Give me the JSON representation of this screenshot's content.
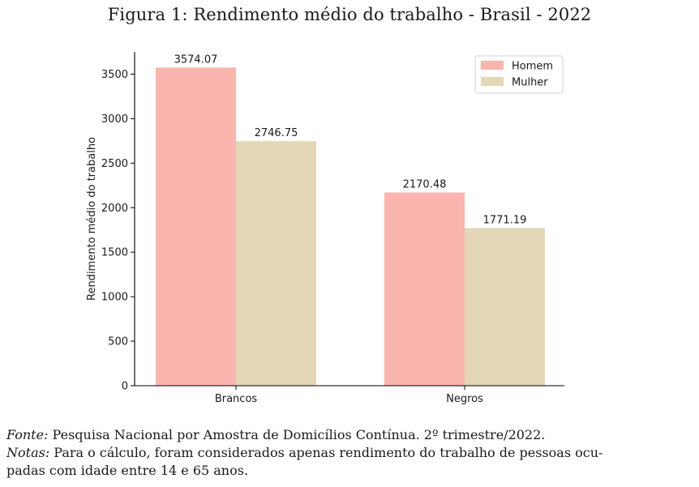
{
  "figure": {
    "title": "Figura 1: Rendimento médio do trabalho - Brasil - 2022"
  },
  "chart_data": {
    "type": "bar",
    "title": "",
    "xlabel": "",
    "ylabel": "Rendimento médio do trabalho",
    "categories": [
      "Brancos",
      "Negros"
    ],
    "series": [
      {
        "name": "Homem",
        "values": [
          3574.07,
          2170.48
        ],
        "color": "#f9b5ae"
      },
      {
        "name": "Mulher",
        "values": [
          2746.75,
          1771.19
        ],
        "color": "#e3d7b8"
      }
    ],
    "data_labels": [
      [
        "3574.07",
        "2170.48"
      ],
      [
        "2746.75",
        "1771.19"
      ]
    ],
    "ylim": [
      0,
      3750
    ],
    "yticks": [
      0,
      500,
      1000,
      1500,
      2000,
      2500,
      3000,
      3500
    ],
    "grid": false,
    "legend_position": "top-right"
  },
  "notes": {
    "source_label": "Fonte:",
    "source_text": "Pesquisa Nacional por Amostra de Domicílios Contínua. 2º trimestre/2022.",
    "notes_label": "Notas:",
    "notes_line1": "Para o cálculo, foram considerados apenas rendimento do trabalho de pessoas ocu-",
    "notes_line2": "padas com idade entre 14 e 65 anos."
  }
}
